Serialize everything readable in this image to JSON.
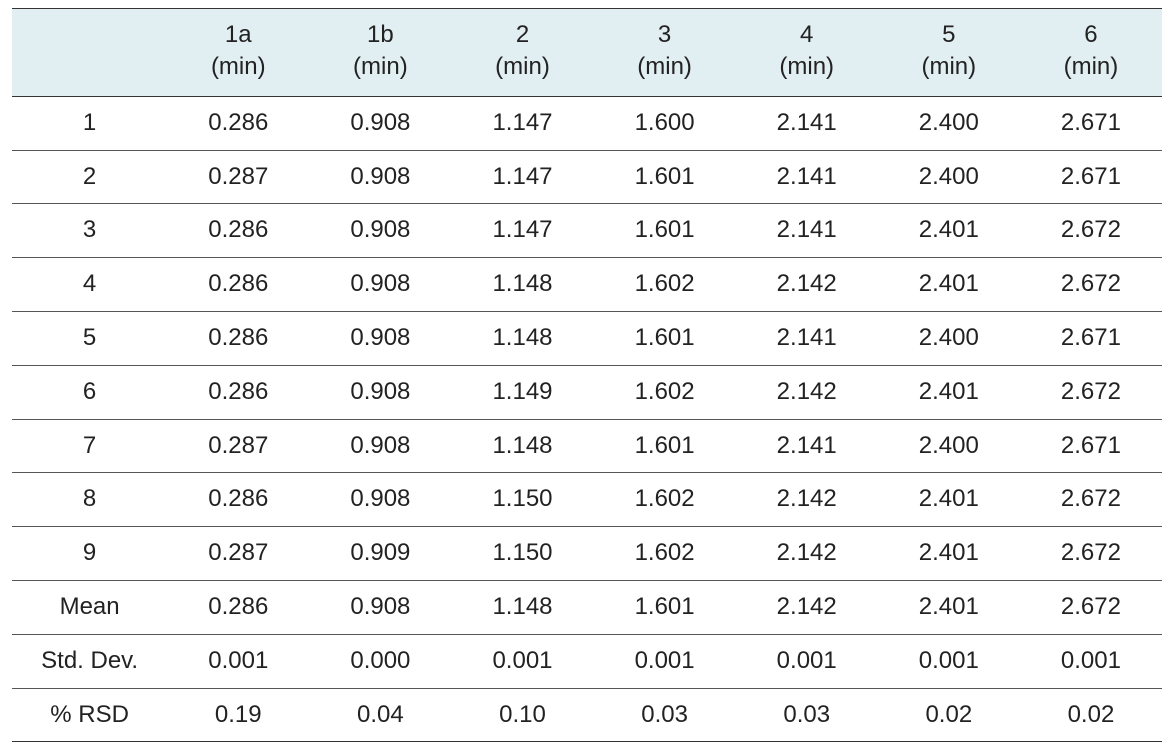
{
  "table": {
    "type": "table",
    "background_color": "#ffffff",
    "header_bg": "#e1eef2",
    "rule_color": "#333333",
    "row_rule_color": "#555555",
    "text_color": "#222222",
    "font_family": "Segoe UI / Helvetica Neue",
    "header_fontsize_pt": 18,
    "cell_fontsize_pt": 18,
    "col_widths_pct": [
      13.5,
      12.36,
      12.36,
      12.36,
      12.36,
      12.36,
      12.36,
      12.36
    ],
    "columns": [
      {
        "label": "",
        "unit": ""
      },
      {
        "label": "1a",
        "unit": "(min)"
      },
      {
        "label": "1b",
        "unit": "(min)"
      },
      {
        "label": "2",
        "unit": "(min)"
      },
      {
        "label": "3",
        "unit": "(min)"
      },
      {
        "label": "4",
        "unit": "(min)"
      },
      {
        "label": "5",
        "unit": "(min)"
      },
      {
        "label": "6",
        "unit": "(min)"
      }
    ],
    "rows": [
      {
        "label": "1",
        "values": [
          "0.286",
          "0.908",
          "1.147",
          "1.600",
          "2.141",
          "2.400",
          "2.671"
        ]
      },
      {
        "label": "2",
        "values": [
          "0.287",
          "0.908",
          "1.147",
          "1.601",
          "2.141",
          "2.400",
          "2.671"
        ]
      },
      {
        "label": "3",
        "values": [
          "0.286",
          "0.908",
          "1.147",
          "1.601",
          "2.141",
          "2.401",
          "2.672"
        ]
      },
      {
        "label": "4",
        "values": [
          "0.286",
          "0.908",
          "1.148",
          "1.602",
          "2.142",
          "2.401",
          "2.672"
        ]
      },
      {
        "label": "5",
        "values": [
          "0.286",
          "0.908",
          "1.148",
          "1.601",
          "2.141",
          "2.400",
          "2.671"
        ]
      },
      {
        "label": "6",
        "values": [
          "0.286",
          "0.908",
          "1.149",
          "1.602",
          "2.142",
          "2.401",
          "2.672"
        ]
      },
      {
        "label": "7",
        "values": [
          "0.287",
          "0.908",
          "1.148",
          "1.601",
          "2.141",
          "2.400",
          "2.671"
        ]
      },
      {
        "label": "8",
        "values": [
          "0.286",
          "0.908",
          "1.150",
          "1.602",
          "2.142",
          "2.401",
          "2.672"
        ]
      },
      {
        "label": "9",
        "values": [
          "0.287",
          "0.909",
          "1.150",
          "1.602",
          "2.142",
          "2.401",
          "2.672"
        ]
      },
      {
        "label": "Mean",
        "values": [
          "0.286",
          "0.908",
          "1.148",
          "1.601",
          "2.142",
          "2.401",
          "2.672"
        ]
      },
      {
        "label": "Std. Dev.",
        "values": [
          "0.001",
          "0.000",
          "0.001",
          "0.001",
          "0.001",
          "0.001",
          "0.001"
        ]
      },
      {
        "label": "% RSD",
        "values": [
          "0.19",
          "0.04",
          "0.10",
          "0.03",
          "0.03",
          "0.02",
          "0.02"
        ]
      }
    ]
  }
}
